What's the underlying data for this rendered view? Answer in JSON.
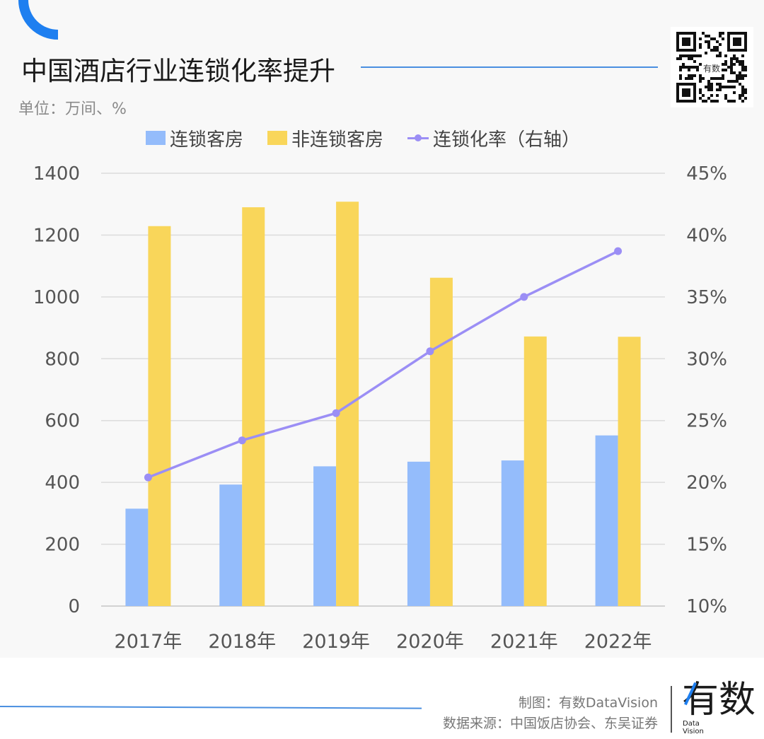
{
  "header": {
    "title": "中国酒店行业连锁化率提升",
    "unit": "单位：万间、%"
  },
  "qr": {
    "label": "有数"
  },
  "colors": {
    "accent": "#1e7ff0",
    "chain_rooms": "#94bcfb",
    "non_chain_rooms": "#f9d65a",
    "chain_rate": "#9b8ef5",
    "grid": "#dcdcdc",
    "axis_text": "#555555"
  },
  "chart_data": {
    "type": "bar",
    "title": "中国酒店行业连锁化率提升",
    "xlabel": "",
    "ylabel": "万间",
    "y2label": "%",
    "categories": [
      "2017年",
      "2018年",
      "2019年",
      "2020年",
      "2021年",
      "2022年"
    ],
    "series": [
      {
        "name": "连锁客房",
        "type": "bar",
        "axis": "left",
        "values": [
          315,
          393,
          452,
          467,
          471,
          552
        ]
      },
      {
        "name": "非连锁客房",
        "type": "bar",
        "axis": "left",
        "values": [
          1229,
          1290,
          1308,
          1062,
          872,
          871
        ]
      },
      {
        "name": "连锁化率（右轴）",
        "type": "line",
        "axis": "right",
        "values": [
          20.4,
          23.4,
          25.6,
          30.6,
          35.0,
          38.7
        ]
      }
    ],
    "ylim": [
      0,
      1400
    ],
    "y2lim": [
      10,
      45
    ],
    "yticks": [
      "0",
      "200",
      "400",
      "600",
      "800",
      "1000",
      "1200",
      "1400"
    ],
    "y2ticks": [
      "10%",
      "15%",
      "20%",
      "25%",
      "30%",
      "35%",
      "40%",
      "45%"
    ],
    "grid": true,
    "legend": "top"
  },
  "footer": {
    "credit": "制图：有数DataVision",
    "source": "数据来源：中国饭店协会、东吴证券",
    "logo_main": "有数",
    "logo_sub_1": "Data",
    "logo_sub_2": "Vision"
  }
}
